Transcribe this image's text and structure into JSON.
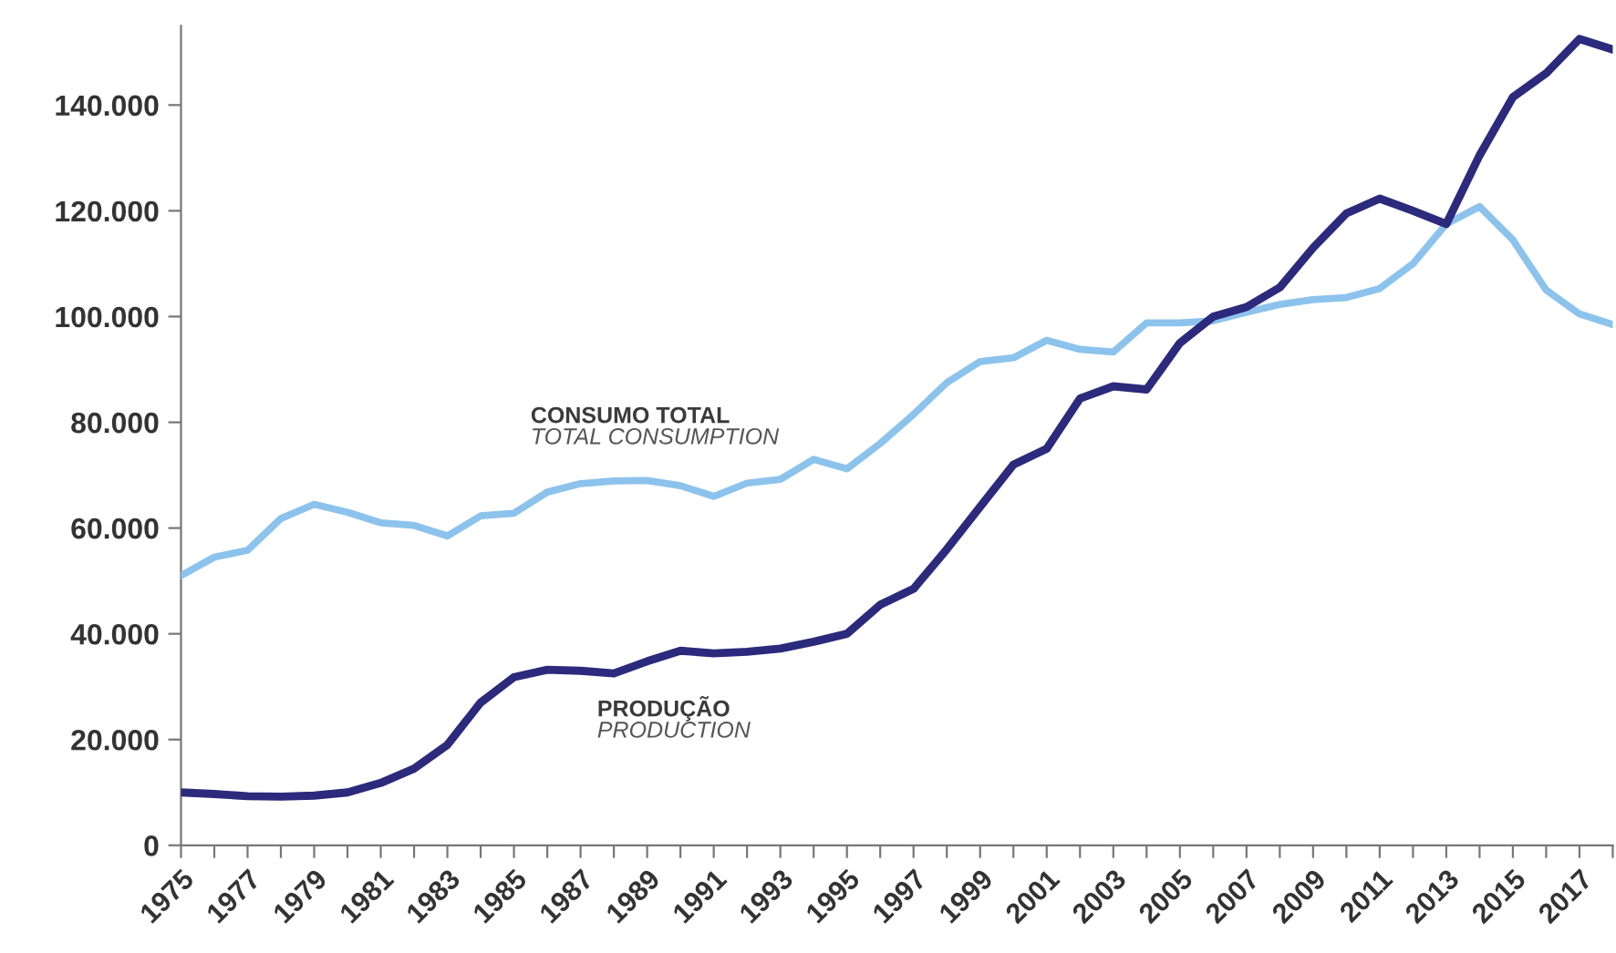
{
  "chart_data": {
    "type": "line",
    "x": [
      1975,
      1976,
      1977,
      1978,
      1979,
      1980,
      1981,
      1982,
      1983,
      1984,
      1985,
      1986,
      1987,
      1988,
      1989,
      1990,
      1991,
      1992,
      1993,
      1994,
      1995,
      1996,
      1997,
      1998,
      1999,
      2000,
      2001,
      2002,
      2003,
      2004,
      2005,
      2006,
      2007,
      2008,
      2009,
      2010,
      2011,
      2012,
      2013,
      2014,
      2015,
      2016,
      2017,
      2018
    ],
    "series": [
      {
        "name": "CONSUMO TOTAL",
        "color": "#8cc3ec",
        "values": [
          51000,
          54500,
          55800,
          61800,
          64500,
          63000,
          61000,
          60500,
          58500,
          62300,
          62800,
          66800,
          68400,
          68900,
          69000,
          68000,
          66000,
          68500,
          69200,
          73000,
          71200,
          76000,
          81500,
          87500,
          91500,
          92200,
          95500,
          93800,
          93300,
          98800,
          98800,
          99200,
          100800,
          102300,
          103200,
          103600,
          105300,
          110000,
          117500,
          120800,
          114500,
          105000,
          100500,
          98500
        ]
      },
      {
        "name": "PRODUÇÃO",
        "color": "#2b2a7c",
        "values": [
          10000,
          9700,
          9300,
          9200,
          9400,
          10000,
          11800,
          14500,
          19000,
          27000,
          31800,
          33200,
          33000,
          32500,
          34800,
          36800,
          36300,
          36600,
          37200,
          38500,
          40000,
          45500,
          48500,
          56000,
          64000,
          72000,
          75000,
          84500,
          86800,
          86200,
          95000,
          100000,
          101800,
          105500,
          113000,
          119500,
          122300,
          120000,
          117500,
          130500,
          141500,
          146000,
          152500,
          150500
        ]
      }
    ],
    "annotations": [
      "TOTAL CONSUMPTION",
      "PRODUCTION"
    ],
    "xlim": [
      1975,
      2018
    ],
    "xticks": [
      1975,
      {
        "value": 1976,
        "label": null
      },
      1977,
      {
        "value": 1978,
        "label": null
      },
      1979,
      {
        "value": 1980,
        "label": null
      },
      1981,
      {
        "value": 1982,
        "label": null
      },
      1983,
      {
        "value": 1984,
        "label": null
      },
      1985,
      {
        "value": 1986,
        "label": null
      },
      1987,
      {
        "value": 1988,
        "label": null
      },
      1989,
      {
        "value": 1990,
        "label": null
      },
      1991,
      {
        "value": 1992,
        "label": null
      },
      1993,
      {
        "value": 1994,
        "label": null
      },
      1995,
      {
        "value": 1996,
        "label": null
      },
      1997,
      {
        "value": 1998,
        "label": null
      },
      1999,
      {
        "value": 2000,
        "label": null
      },
      2001,
      {
        "value": 2002,
        "label": null
      },
      2003,
      {
        "value": 2004,
        "label": null
      },
      2005,
      {
        "value": 2006,
        "label": null
      },
      2007,
      {
        "value": 2008,
        "label": null
      },
      2009,
      {
        "value": 2010,
        "label": null
      },
      2011,
      {
        "value": 2012,
        "label": null
      },
      2013,
      {
        "value": 2014,
        "label": null
      },
      2015,
      {
        "value": 2016,
        "label": null
      },
      2017,
      {
        "value": 2018,
        "label": null
      }
    ],
    "ylim": [
      0,
      155000
    ],
    "yticks": [
      0,
      {
        "value": 20000,
        "label": "20.000"
      },
      {
        "value": 40000,
        "label": "40.000"
      },
      {
        "value": 60000,
        "label": "60.000"
      },
      {
        "value": 80000,
        "label": "80.000"
      },
      {
        "value": 100000,
        "label": "100.000"
      },
      {
        "value": 120000,
        "label": "120.000"
      },
      {
        "value": 140000,
        "label": "140.000"
      }
    ],
    "grid": false,
    "legend": false,
    "line_style": "solid",
    "marker": "none"
  }
}
